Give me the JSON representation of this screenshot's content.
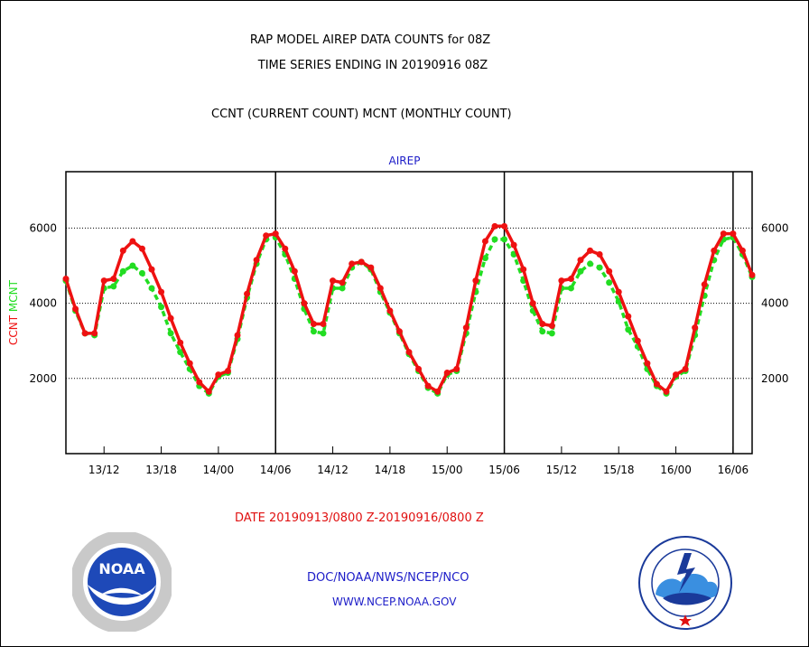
{
  "header": {
    "title_line1": "RAP MODEL AIREP DATA COUNTS for 08Z",
    "title_line2": "TIME SERIES ENDING IN 20190916 08Z",
    "subtitle": "CCNT (CURRENT COUNT) MCNT (MONTHLY COUNT)"
  },
  "footer": {
    "date_range": "DATE 20190913/0800 Z-20190916/0800 Z",
    "agency": "DOC/NOAA/NWS/NCEP/NCO",
    "website": "WWW.NCEP.NOAA.GOV"
  },
  "logos": {
    "left": "noaa-logo",
    "right": "national-weather-service-logo"
  },
  "colors": {
    "ccnt": "#ee1111",
    "mcnt": "#22dd22",
    "text_blue": "#1c1cc8",
    "text_red": "#e01010"
  },
  "chart_data": {
    "type": "line",
    "title": "AIREP",
    "ylabel_left": [
      "CCNT",
      "MCNT"
    ],
    "ylim": [
      0,
      7500
    ],
    "yticks": [
      2000,
      4000,
      6000
    ],
    "xlim": [
      0,
      72
    ],
    "xtick_positions": [
      4,
      10,
      16,
      22,
      28,
      34,
      40,
      46,
      52,
      58,
      64,
      70
    ],
    "xtick_labels": [
      "13/12",
      "13/18",
      "14/00",
      "14/06",
      "14/12",
      "14/18",
      "15/00",
      "15/06",
      "15/12",
      "15/18",
      "16/00",
      "16/06"
    ],
    "x_unit": "hours after 13/0800 Z",
    "day_boundaries": [
      22,
      46,
      70
    ],
    "grid": "horizontal dotted at y ticks",
    "series": [
      {
        "name": "CCNT",
        "color": "#ee1111",
        "x": [
          0,
          1,
          2,
          3,
          4,
          5,
          6,
          7,
          8,
          9,
          10,
          11,
          12,
          13,
          14,
          15,
          16,
          17,
          18,
          19,
          20,
          21,
          22,
          23,
          24,
          25,
          26,
          27,
          28,
          29,
          30,
          31,
          32,
          33,
          34,
          35,
          36,
          37,
          38,
          39,
          40,
          41,
          42,
          43,
          44,
          45,
          46,
          47,
          48,
          49,
          50,
          51,
          52,
          53,
          54,
          55,
          56,
          57,
          58,
          59,
          60,
          61,
          62,
          63,
          64,
          65,
          66,
          67,
          68,
          69,
          70,
          71,
          72
        ],
        "values": [
          4650,
          3850,
          3200,
          3200,
          4600,
          4650,
          5400,
          5650,
          5450,
          4900,
          4300,
          3600,
          2950,
          2400,
          1900,
          1650,
          2100,
          2200,
          3150,
          4250,
          5150,
          5800,
          5850,
          5450,
          4850,
          4000,
          3450,
          3450,
          4600,
          4550,
          5050,
          5100,
          4950,
          4400,
          3800,
          3250,
          2700,
          2250,
          1800,
          1650,
          2150,
          2250,
          3350,
          4600,
          5650,
          6050,
          6050,
          5550,
          4900,
          4000,
          3450,
          3400,
          4600,
          4650,
          5150,
          5400,
          5300,
          4850,
          4300,
          3650,
          3000,
          2400,
          1850,
          1650,
          2100,
          2250,
          3350,
          4500,
          5400,
          5850,
          5850,
          5400,
          4750
        ]
      },
      {
        "name": "MCNT",
        "color": "#22dd22",
        "x": [
          0,
          1,
          2,
          3,
          4,
          5,
          6,
          7,
          8,
          9,
          10,
          11,
          12,
          13,
          14,
          15,
          16,
          17,
          18,
          19,
          20,
          21,
          22,
          23,
          24,
          25,
          26,
          27,
          28,
          29,
          30,
          31,
          32,
          33,
          34,
          35,
          36,
          37,
          38,
          39,
          40,
          41,
          42,
          43,
          44,
          45,
          46,
          47,
          48,
          49,
          50,
          51,
          52,
          53,
          54,
          55,
          56,
          57,
          58,
          59,
          60,
          61,
          62,
          63,
          64,
          65,
          66,
          67,
          68,
          69,
          70,
          71,
          72
        ],
        "values": [
          4600,
          3800,
          3200,
          3150,
          4400,
          4450,
          4850,
          5000,
          4800,
          4400,
          3900,
          3200,
          2700,
          2250,
          1800,
          1600,
          2050,
          2150,
          3050,
          4150,
          5050,
          5700,
          5750,
          5300,
          4650,
          3850,
          3250,
          3200,
          4400,
          4400,
          4950,
          5100,
          4900,
          4300,
          3750,
          3200,
          2650,
          2200,
          1750,
          1600,
          2100,
          2200,
          3200,
          4300,
          5200,
          5700,
          5700,
          5300,
          4600,
          3800,
          3250,
          3200,
          4400,
          4400,
          4850,
          5050,
          4950,
          4550,
          4050,
          3300,
          2850,
          2250,
          1800,
          1600,
          2050,
          2200,
          3150,
          4200,
          5150,
          5700,
          5750,
          5300,
          4700
        ]
      }
    ]
  }
}
